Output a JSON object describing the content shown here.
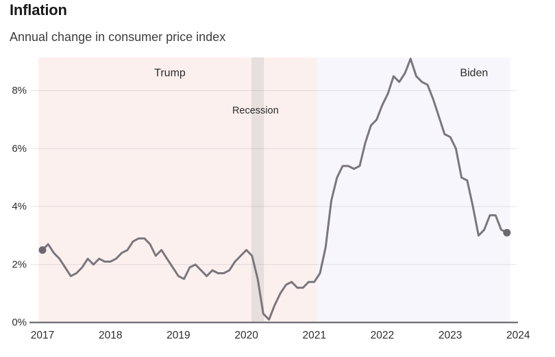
{
  "header": {
    "title": "Inflation",
    "subtitle": "Annual change in consumer price index"
  },
  "chart_data": {
    "type": "line",
    "title": "Inflation",
    "subtitle": "Annual change in consumer price index",
    "x_axis": {
      "tick_labels": [
        "2017",
        "2018",
        "2019",
        "2020",
        "2021",
        "2022",
        "2023",
        "2024"
      ],
      "tick_months": [
        0,
        12,
        24,
        36,
        48,
        60,
        72,
        84
      ],
      "start": "2017-01"
    },
    "y_axis": {
      "tick_labels": [
        "0%",
        "2%",
        "4%",
        "6%",
        "8%"
      ],
      "tick_values": [
        0,
        2,
        4,
        6,
        8
      ],
      "range": [
        0,
        9.15
      ],
      "grid": true
    },
    "series": [
      {
        "name": "Annual change in consumer price index",
        "color": "#7a767c",
        "start": "2017-01",
        "end": "2023-11",
        "values": [
          2.5,
          2.7,
          2.4,
          2.2,
          1.9,
          1.6,
          1.7,
          1.9,
          2.2,
          2.0,
          2.2,
          2.1,
          2.1,
          2.2,
          2.4,
          2.5,
          2.8,
          2.9,
          2.9,
          2.7,
          2.3,
          2.5,
          2.2,
          1.9,
          1.6,
          1.5,
          1.9,
          2.0,
          1.8,
          1.6,
          1.8,
          1.7,
          1.7,
          1.8,
          2.1,
          2.3,
          2.5,
          2.3,
          1.5,
          0.3,
          0.1,
          0.6,
          1.0,
          1.3,
          1.4,
          1.2,
          1.2,
          1.4,
          1.4,
          1.7,
          2.6,
          4.2,
          5.0,
          5.4,
          5.4,
          5.3,
          5.4,
          6.2,
          6.8,
          7.0,
          7.5,
          7.9,
          8.5,
          8.3,
          8.6,
          9.1,
          8.5,
          8.3,
          8.2,
          7.7,
          7.1,
          6.5,
          6.4,
          6.0,
          5.0,
          4.9,
          4.0,
          3.0,
          3.2,
          3.7,
          3.7,
          3.2,
          3.1
        ],
        "first_point": 2.5,
        "last_point": 3.1,
        "marker_first": true,
        "marker_last": true
      }
    ],
    "regions": [
      {
        "label": "Trump",
        "color": "#fcf0ef",
        "from_month": -0.7,
        "to_month": 48.5,
        "label_month": 22.5,
        "label_value": 8.6
      },
      {
        "label": "Biden",
        "color": "#f7f6fc",
        "from_month": 48.5,
        "to_month": 82.6,
        "label_month": 76.2,
        "label_value": 8.6
      },
      {
        "label": "Recession",
        "color": "#e6dfdd",
        "from_month": 36.9,
        "to_month": 39.1,
        "label_month": 37.6,
        "label_value": 7.3
      }
    ],
    "colors": {
      "line": "#7a767c",
      "dot": "#6c6870",
      "gridline": "#64646e",
      "baseline": "#5a5760",
      "axis_text": "#2d2d2d",
      "annotation_text": "#2b2b2b"
    }
  }
}
